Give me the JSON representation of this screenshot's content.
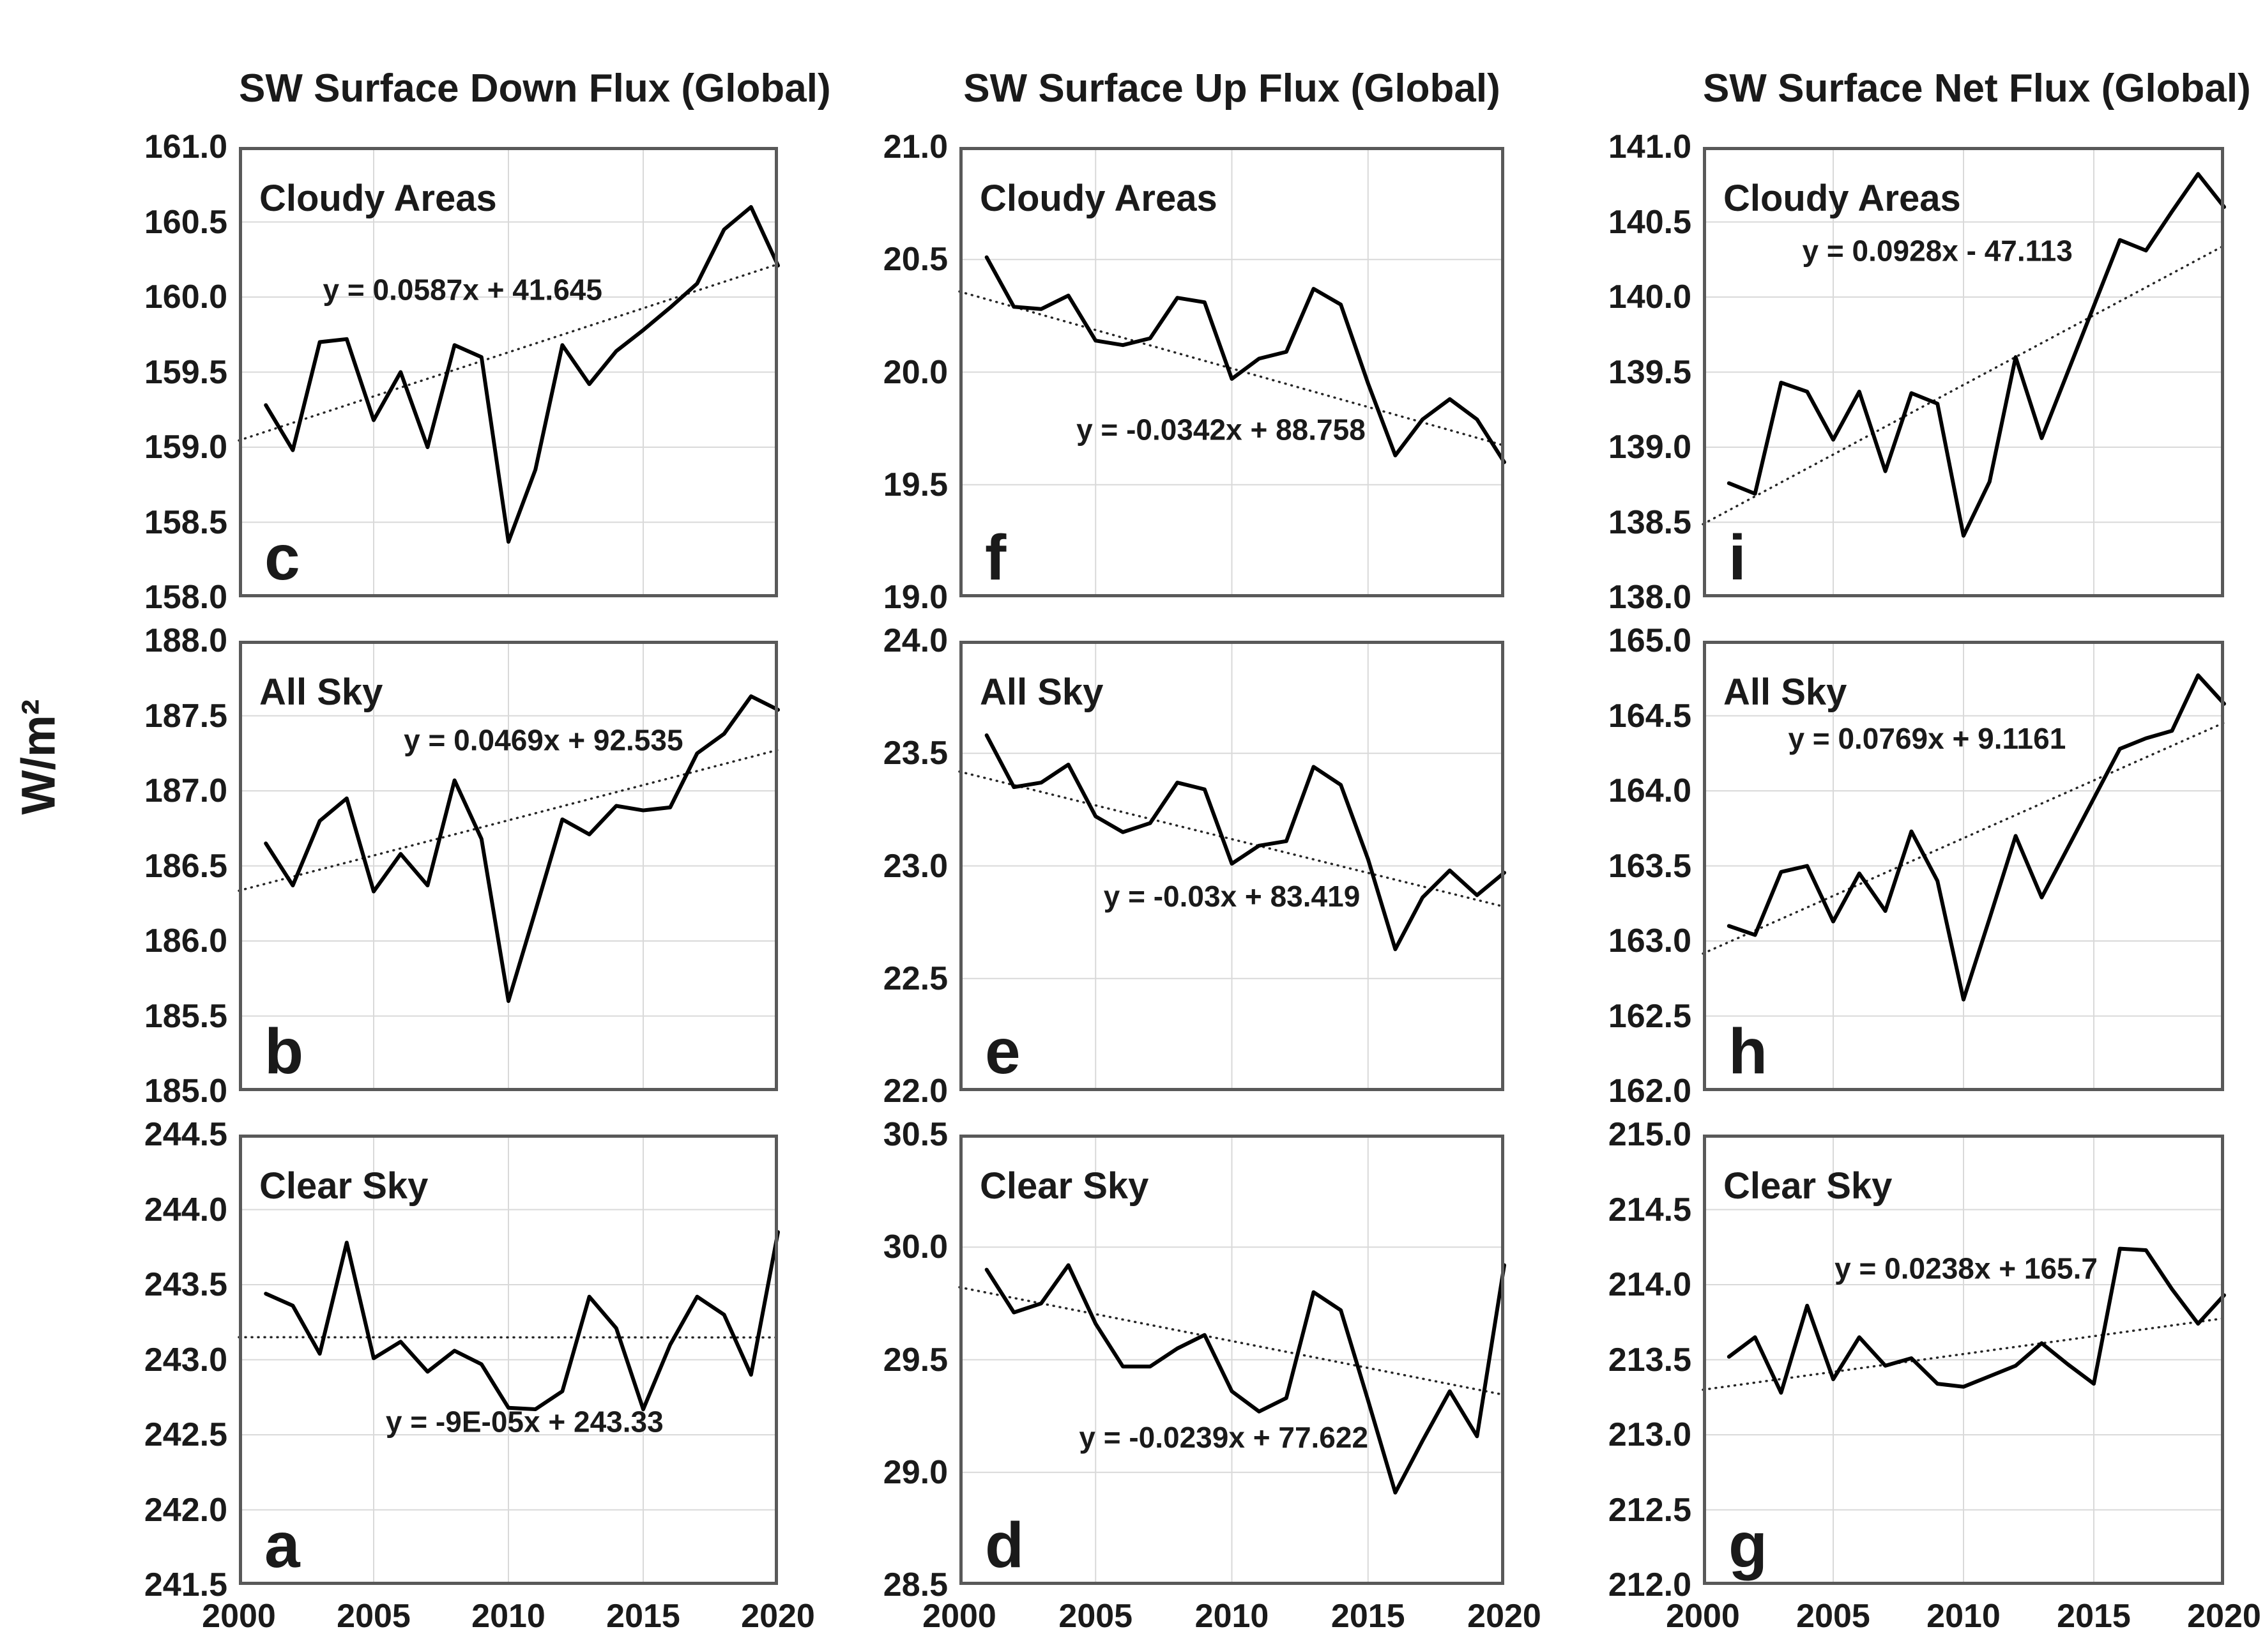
{
  "ylabel": "W/m²",
  "colors": {
    "series_line": "#000000",
    "trend_line": "#262626",
    "gridline": "#d9d9d9",
    "plot_border": "#595959",
    "text": "#1a1a1a",
    "background": "#ffffff"
  },
  "chart_data": [
    {
      "type": "line",
      "title": "SW Surface Down Flux (Global)",
      "ylabel": "W/m²",
      "x": [
        2001,
        2002,
        2003,
        2004,
        2005,
        2006,
        2007,
        2008,
        2009,
        2010,
        2011,
        2012,
        2013,
        2014,
        2015,
        2016,
        2017,
        2018,
        2019,
        2020
      ],
      "xlim": [
        2000,
        2020
      ],
      "xticks": [
        2000,
        2005,
        2010,
        2015,
        2020
      ],
      "x_gridlines": [
        2005,
        2010,
        2015
      ],
      "grid": true,
      "legend": false,
      "panels": [
        {
          "letter": "c",
          "label": "Cloudy Areas",
          "equation": "y = 0.0587x + 41.645",
          "trend_slope": 0.0587,
          "trend_intercept": 41.645,
          "ylim": [
            158.0,
            161.0
          ],
          "ytick_step": 0.5,
          "eq_anchor": [
            2008.3,
            159.98
          ],
          "values": [
            159.28,
            158.98,
            159.7,
            159.72,
            159.18,
            159.5,
            159.0,
            159.68,
            159.6,
            158.37,
            158.85,
            159.68,
            159.42,
            159.64,
            159.78,
            159.93,
            160.09,
            160.45,
            160.6,
            160.21
          ]
        },
        {
          "letter": "b",
          "label": "All Sky",
          "equation": "y = 0.0469x + 92.535",
          "trend_slope": 0.0469,
          "trend_intercept": 92.535,
          "ylim": [
            185.0,
            188.0
          ],
          "ytick_step": 0.5,
          "eq_anchor": [
            2011.3,
            187.27
          ],
          "values": [
            186.65,
            186.37,
            186.8,
            186.95,
            186.33,
            186.58,
            186.37,
            187.07,
            186.68,
            185.6,
            186.2,
            186.81,
            186.71,
            186.9,
            186.87,
            186.89,
            187.25,
            187.38,
            187.63,
            187.54
          ]
        },
        {
          "letter": "a",
          "label": "Clear Sky",
          "equation": "y = -9E-05x + 243.33",
          "trend_slope": -9e-05,
          "trend_intercept": 243.33,
          "ylim": [
            241.5,
            244.5
          ],
          "ytick_step": 0.5,
          "eq_anchor": [
            2010.6,
            242.52
          ],
          "values": [
            243.44,
            243.36,
            243.04,
            243.78,
            243.01,
            243.12,
            242.92,
            243.06,
            242.97,
            242.68,
            242.67,
            242.79,
            243.42,
            243.21,
            242.67,
            243.1,
            243.42,
            243.3,
            242.9,
            243.85
          ]
        }
      ]
    },
    {
      "type": "line",
      "title": "SW Surface Up Flux (Global)",
      "ylabel": "W/m²",
      "x": [
        2001,
        2002,
        2003,
        2004,
        2005,
        2006,
        2007,
        2008,
        2009,
        2010,
        2011,
        2012,
        2013,
        2014,
        2015,
        2016,
        2017,
        2018,
        2019,
        2020
      ],
      "xlim": [
        2000,
        2020
      ],
      "xticks": [
        2000,
        2005,
        2010,
        2015,
        2020
      ],
      "x_gridlines": [
        2005,
        2010,
        2015
      ],
      "grid": true,
      "legend": false,
      "panels": [
        {
          "letter": "f",
          "label": "Cloudy Areas",
          "equation": "y = -0.0342x + 88.758",
          "trend_slope": -0.0342,
          "trend_intercept": 88.758,
          "ylim": [
            19.0,
            21.0
          ],
          "ytick_step": 0.5,
          "eq_anchor": [
            2009.6,
            19.7
          ],
          "values": [
            20.51,
            20.29,
            20.28,
            20.34,
            20.14,
            20.12,
            20.15,
            20.33,
            20.31,
            19.97,
            20.06,
            20.09,
            20.37,
            20.3,
            19.95,
            19.63,
            19.79,
            19.88,
            19.79,
            19.6
          ]
        },
        {
          "letter": "e",
          "label": "All Sky",
          "equation": "y = -0.03x + 83.419",
          "trend_slope": -0.03,
          "trend_intercept": 83.419,
          "ylim": [
            22.0,
            24.0
          ],
          "ytick_step": 0.5,
          "eq_anchor": [
            2010.0,
            22.82
          ],
          "values": [
            23.58,
            23.35,
            23.37,
            23.45,
            23.22,
            23.15,
            23.19,
            23.37,
            23.34,
            23.01,
            23.09,
            23.11,
            23.44,
            23.36,
            23.03,
            22.63,
            22.86,
            22.98,
            22.87,
            22.97
          ]
        },
        {
          "letter": "d",
          "label": "Clear Sky",
          "equation": "y = -0.0239x + 77.622",
          "trend_slope": -0.0239,
          "trend_intercept": 77.622,
          "ylim": [
            28.5,
            30.5
          ],
          "ytick_step": 0.5,
          "eq_anchor": [
            2009.7,
            29.11
          ],
          "values": [
            29.9,
            29.71,
            29.75,
            29.92,
            29.66,
            29.47,
            29.47,
            29.55,
            29.61,
            29.36,
            29.27,
            29.33,
            29.8,
            29.72,
            29.32,
            28.91,
            29.14,
            29.36,
            29.16,
            29.92
          ]
        }
      ]
    },
    {
      "type": "line",
      "title": "SW Surface Net Flux (Global)",
      "ylabel": "W/m²",
      "x": [
        2001,
        2002,
        2003,
        2004,
        2005,
        2006,
        2007,
        2008,
        2009,
        2010,
        2011,
        2012,
        2013,
        2014,
        2015,
        2016,
        2017,
        2018,
        2019,
        2020
      ],
      "xlim": [
        2000,
        2020
      ],
      "xticks": [
        2000,
        2005,
        2010,
        2015,
        2020
      ],
      "x_gridlines": [
        2005,
        2010,
        2015
      ],
      "grid": true,
      "legend": false,
      "panels": [
        {
          "letter": "i",
          "label": "Cloudy Areas",
          "equation": "y = 0.0928x - 47.113",
          "trend_slope": 0.0928,
          "trend_intercept": -47.113,
          "ylim": [
            138.0,
            141.0
          ],
          "ytick_step": 0.5,
          "eq_anchor": [
            2009.0,
            140.24
          ],
          "values": [
            138.76,
            138.69,
            139.43,
            139.37,
            139.05,
            139.37,
            138.84,
            139.36,
            139.29,
            138.41,
            138.77,
            139.6,
            139.06,
            139.5,
            139.94,
            140.38,
            140.31,
            140.57,
            140.82,
            140.6
          ]
        },
        {
          "letter": "h",
          "label": "All Sky",
          "equation": "y = 0.0769x + 9.1161",
          "trend_slope": 0.0769,
          "trend_intercept": 9.1161,
          "ylim": [
            162.0,
            165.0
          ],
          "ytick_step": 0.5,
          "eq_anchor": [
            2008.6,
            164.28
          ],
          "values": [
            163.1,
            163.04,
            163.46,
            163.5,
            163.13,
            163.45,
            163.2,
            163.73,
            163.4,
            162.61,
            163.15,
            163.7,
            163.29,
            163.62,
            163.95,
            164.28,
            164.35,
            164.4,
            164.77,
            164.58
          ]
        },
        {
          "letter": "g",
          "label": "Clear Sky",
          "equation": "y = 0.0238x + 165.7",
          "trend_slope": 0.0238,
          "trend_intercept": 165.7,
          "ylim": [
            212.0,
            215.0
          ],
          "ytick_step": 0.5,
          "eq_anchor": [
            2010.1,
            214.04
          ],
          "values": [
            213.52,
            213.65,
            213.28,
            213.86,
            213.37,
            213.65,
            213.46,
            213.51,
            213.34,
            213.32,
            213.39,
            213.46,
            213.61,
            213.47,
            213.34,
            214.24,
            214.23,
            213.97,
            213.74,
            213.93
          ]
        }
      ]
    }
  ]
}
